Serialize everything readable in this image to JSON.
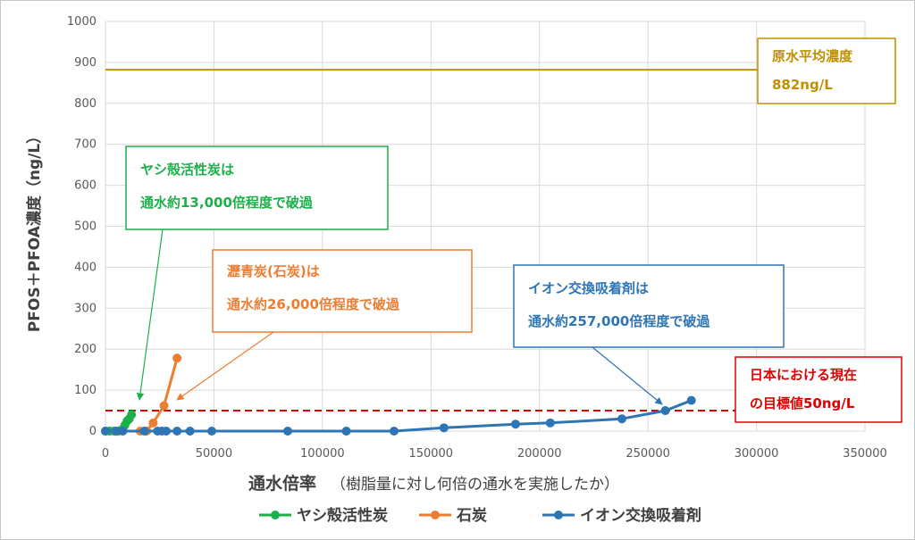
{
  "chart_data": {
    "type": "line",
    "title": "",
    "ylabel": "PFOS＋PFOA濃度（ng/L）",
    "xlabel_main": "通水倍率",
    "xlabel_sub": "（樹脂量に対し何倍の通水を実施したか）",
    "xlim": [
      0,
      350000
    ],
    "ylim": [
      0,
      1000
    ],
    "x_ticks": [
      "0",
      "50000",
      "100000",
      "150000",
      "200000",
      "250000",
      "300000",
      "350000"
    ],
    "y_ticks": [
      "0",
      "100",
      "200",
      "300",
      "400",
      "500",
      "600",
      "700",
      "800",
      "900",
      "1000"
    ],
    "grid": true,
    "legend_position": "bottom",
    "series": [
      {
        "name": "ヤシ殻活性炭",
        "color": "#1cb04a",
        "points": [
          [
            0,
            0
          ],
          [
            2000,
            0
          ],
          [
            4000,
            0
          ],
          [
            6000,
            0
          ],
          [
            8000,
            5
          ],
          [
            9000,
            15
          ],
          [
            10000,
            25
          ],
          [
            11000,
            30
          ],
          [
            12000,
            40
          ]
        ]
      },
      {
        "name": "石炭",
        "color": "#ed7d31",
        "points": [
          [
            16000,
            0
          ],
          [
            19000,
            0
          ],
          [
            22000,
            20
          ],
          [
            27000,
            62
          ],
          [
            33000,
            178
          ]
        ]
      },
      {
        "name": "イオン交換吸着剤",
        "color": "#2e75b6",
        "points": [
          [
            0,
            0
          ],
          [
            5000,
            0
          ],
          [
            8000,
            0
          ],
          [
            18000,
            0
          ],
          [
            24000,
            0
          ],
          [
            26000,
            0
          ],
          [
            28000,
            0
          ],
          [
            33000,
            0
          ],
          [
            39000,
            0
          ],
          [
            49000,
            0
          ],
          [
            84000,
            0
          ],
          [
            111000,
            0
          ],
          [
            133000,
            0
          ],
          [
            156000,
            8
          ],
          [
            189000,
            17
          ],
          [
            205000,
            20
          ],
          [
            238000,
            30
          ],
          [
            258000,
            50
          ],
          [
            270000,
            75
          ]
        ]
      }
    ],
    "reference_lines": [
      {
        "label": "原水平均濃度",
        "value_label": "882ng/L",
        "y": 882,
        "color": "#bf9000",
        "style": "solid"
      },
      {
        "label": "日本における現在の目標値50ng/L",
        "y": 50,
        "color": "#e00000",
        "style": "dashed"
      }
    ],
    "annotations": [
      {
        "line1": "原水平均濃度",
        "line2": "882ng/L",
        "color": "#bf9000"
      },
      {
        "line1": "ヤシ殻活性炭は",
        "line2": "通水約13,000倍程度で破過",
        "color": "#1cb04a"
      },
      {
        "line1": "瀝青炭(石炭)は",
        "line2": "通水約26,000倍程度で破過",
        "color": "#ed7d31"
      },
      {
        "line1": "イオン交換吸着剤は",
        "line2": "通水約257,000倍程度で破過",
        "color": "#2e75b6"
      },
      {
        "line1": "日本における現在",
        "line2": "の目標値50ng/L",
        "color": "#e00000"
      }
    ]
  }
}
